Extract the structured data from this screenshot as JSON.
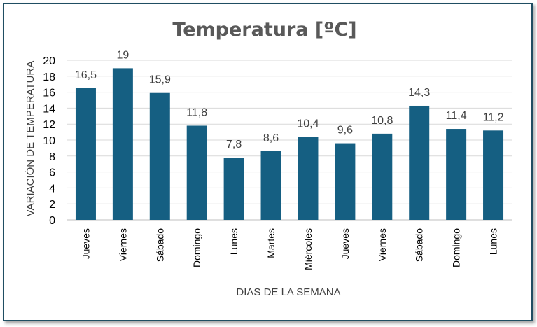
{
  "chart_data": {
    "type": "bar",
    "title": "Temperatura [ºC]",
    "xlabel": "DIAS DE LA SEMANA",
    "ylabel": "VARIACIÓN DE TEMPERATURA",
    "ylim": [
      0,
      20
    ],
    "yticks": [
      0,
      2,
      4,
      6,
      8,
      10,
      12,
      14,
      16,
      18,
      20
    ],
    "grid": true,
    "legend": "none",
    "categories": [
      "Jueves",
      "Viernes",
      "Sábado",
      "Domingo",
      "Lunes",
      "Martes",
      "Miércoles",
      "Jueves",
      "Viernes",
      "Sábado",
      "Domingo",
      "Lunes"
    ],
    "values": [
      16.5,
      19,
      15.9,
      11.8,
      7.8,
      8.6,
      10.4,
      9.6,
      10.8,
      14.3,
      11.4,
      11.2
    ],
    "data_labels": [
      "16,5",
      "19",
      "15,9",
      "11,8",
      "7,8",
      "8,6",
      "10,4",
      "9,6",
      "10,8",
      "14,3",
      "11,4",
      "11,2"
    ],
    "colors": {
      "bar": "#155f82",
      "grid": "#d9d9d9",
      "border": "#1f4e62"
    }
  }
}
